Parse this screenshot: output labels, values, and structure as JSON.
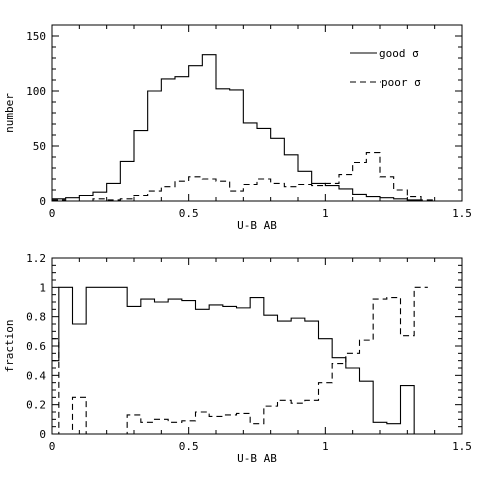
{
  "chart_data": [
    {
      "type": "histogram",
      "xlabel": "U-B AB",
      "ylabel": "number",
      "xlim": [
        0,
        1.5
      ],
      "ylim": [
        0,
        160
      ],
      "xticks": [
        0,
        0.5,
        1,
        1.5
      ],
      "xtick_labels": [
        "0",
        "0.5",
        "1",
        "1.5"
      ],
      "yticks": [
        0,
        50,
        100,
        150
      ],
      "ytick_labels": [
        "0",
        "50",
        "100",
        "150"
      ],
      "legend_position": "top-right",
      "bin_edges": [
        0.0,
        0.05,
        0.1,
        0.15,
        0.2,
        0.25,
        0.3,
        0.35,
        0.4,
        0.45,
        0.5,
        0.55,
        0.6,
        0.65,
        0.7,
        0.75,
        0.8,
        0.85,
        0.9,
        0.95,
        1.0,
        1.05,
        1.1,
        1.15,
        1.2,
        1.25,
        1.3,
        1.35,
        1.4,
        1.45,
        1.5
      ],
      "series": [
        {
          "name": "good σ",
          "style": "solid",
          "values": [
            2,
            3,
            5,
            8,
            16,
            36,
            64,
            100,
            111,
            113,
            123,
            133,
            102,
            101,
            71,
            66,
            57,
            42,
            27,
            16,
            14,
            11,
            6,
            4,
            3,
            2,
            1,
            0,
            0,
            0
          ]
        },
        {
          "name": "poor σ",
          "style": "dashed",
          "values": [
            1,
            0,
            0,
            2,
            1,
            2,
            5,
            9,
            13,
            18,
            22,
            20,
            18,
            9,
            15,
            20,
            16,
            13,
            15,
            14,
            16,
            24,
            35,
            44,
            22,
            10,
            4,
            1,
            0,
            0
          ]
        }
      ]
    },
    {
      "type": "histogram",
      "xlabel": "U-B AB",
      "ylabel": "fraction",
      "xlim": [
        0,
        1.5
      ],
      "ylim": [
        0,
        1.2
      ],
      "xticks": [
        0,
        0.5,
        1,
        1.5
      ],
      "xtick_labels": [
        "0",
        "0.5",
        "1",
        "1.5"
      ],
      "yticks": [
        0,
        0.2,
        0.4,
        0.6,
        0.8,
        1,
        1.2
      ],
      "ytick_labels": [
        "0",
        "0.2",
        "0.4",
        "0.6",
        "0.8",
        "1",
        "1.2"
      ],
      "bin_edges": [
        0.0,
        0.025,
        0.075,
        0.125,
        0.175,
        0.275,
        0.325,
        0.375,
        0.425,
        0.475,
        0.525,
        0.575,
        0.625,
        0.675,
        0.725,
        0.775,
        0.825,
        0.875,
        0.925,
        0.975,
        1.025,
        1.075,
        1.125,
        1.175,
        1.225,
        1.275,
        1.325,
        1.375
      ],
      "series": [
        {
          "name": "",
          "style": "solid",
          "values": [
            0.5,
            1.0,
            0.75,
            1.0,
            1.0,
            0.87,
            0.92,
            0.9,
            0.92,
            0.91,
            0.85,
            0.88,
            0.87,
            0.86,
            0.93,
            0.81,
            0.77,
            0.79,
            0.77,
            0.65,
            0.52,
            0.45,
            0.36,
            0.08,
            0.07,
            0.33,
            0.0
          ]
        },
        {
          "name": "",
          "style": "dashed",
          "values": [
            0.65,
            0.0,
            0.25,
            0.0,
            0.0,
            0.13,
            0.08,
            0.1,
            0.08,
            0.09,
            0.15,
            0.12,
            0.13,
            0.14,
            0.07,
            0.19,
            0.23,
            0.21,
            0.23,
            0.35,
            0.48,
            0.55,
            0.64,
            0.92,
            0.93,
            0.67,
            1.0
          ]
        }
      ]
    }
  ]
}
